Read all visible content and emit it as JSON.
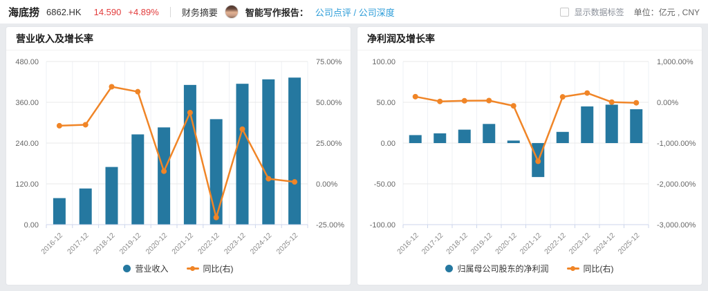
{
  "header": {
    "stock_name": "海底捞",
    "stock_code": "6862.HK",
    "price": "14.590",
    "change_percent": "+4.89%",
    "financial_summary": "财务摘要",
    "ai_report_label": "智能写作报告：",
    "report_link_comment": "公司点评",
    "report_link_separator": "/",
    "report_link_depth": "公司深度",
    "show_data_labels": "显示数据标签",
    "unit_label": "单位：亿元 , CNY"
  },
  "colors": {
    "bar_blue": "#2578a0",
    "line_orange": "#f08527",
    "price_red": "#e23c3c",
    "link_blue": "#2b9cd8",
    "page_bg": "#e9ebee"
  },
  "chart_data": [
    {
      "type": "bar",
      "title": "营业收入及增长率",
      "categories": [
        "2016-12",
        "2017-12",
        "2018-12",
        "2019-12",
        "2020-12",
        "2021-12",
        "2022-12",
        "2023-12",
        "2024-12",
        "2025-12"
      ],
      "series": [
        {
          "name": "营业收入",
          "type": "bar",
          "axis": "left",
          "color": "#2578a0",
          "values": [
            78.08,
            106.37,
            169.69,
            265.56,
            286.14,
            411.12,
            310.39,
            414.53,
            427.55,
            432.7
          ]
        },
        {
          "name": "同比(右)",
          "type": "line",
          "axis": "right",
          "color": "#f08527",
          "values": [
            35.63,
            36.24,
            59.53,
            56.49,
            7.75,
            43.68,
            -20.61,
            33.55,
            3.14,
            1.21
          ]
        }
      ],
      "left_axis": {
        "min": 0,
        "max": 480,
        "ticks": [
          {
            "value": 480,
            "label": "480.00"
          },
          {
            "value": 360,
            "label": "360.00"
          },
          {
            "value": 240,
            "label": "240.00"
          },
          {
            "value": 120,
            "label": "120.00"
          },
          {
            "value": 0,
            "label": "0.00"
          }
        ]
      },
      "right_axis": {
        "min": -25,
        "max": 75,
        "ticks": [
          {
            "value": 75,
            "label": "75.00%"
          },
          {
            "value": 50,
            "label": "50.00%"
          },
          {
            "value": 25,
            "label": "25.00%"
          },
          {
            "value": 0,
            "label": "0.00%"
          },
          {
            "value": -25,
            "label": "-25.00%"
          }
        ]
      },
      "grid": true,
      "legend_position": "bottom"
    },
    {
      "type": "bar",
      "title": "净利润及增长率",
      "categories": [
        "2016-12",
        "2017-12",
        "2018-12",
        "2019-12",
        "2020-12",
        "2021-12",
        "2022-12",
        "2023-12",
        "2024-12",
        "2025-12"
      ],
      "series": [
        {
          "name": "归属母公司股东的净利润",
          "type": "bar",
          "axis": "left",
          "color": "#2578a0",
          "values": [
            9.78,
            11.94,
            16.46,
            23.45,
            3.09,
            -41.63,
            13.73,
            44.95,
            47.08,
            41.5
          ]
        },
        {
          "name": "同比(右)",
          "type": "line",
          "axis": "right",
          "color": "#f08527",
          "values": [
            138.46,
            22.09,
            37.86,
            42.47,
            -86.82,
            -1446.93,
            132.98,
            227.38,
            4.74,
            -11.85
          ]
        }
      ],
      "left_axis": {
        "min": -100,
        "max": 100,
        "ticks": [
          {
            "value": 100,
            "label": "100.00"
          },
          {
            "value": 50,
            "label": "50.00"
          },
          {
            "value": 0,
            "label": "0.00"
          },
          {
            "value": -50,
            "label": "-50.00"
          },
          {
            "value": -100,
            "label": "-100.00"
          }
        ]
      },
      "right_axis": {
        "min": -3000,
        "max": 1000,
        "ticks": [
          {
            "value": 1000,
            "label": "1,000.00%"
          },
          {
            "value": 0,
            "label": "0.00%"
          },
          {
            "value": -1000,
            "label": "-1,000.00%"
          },
          {
            "value": -2000,
            "label": "-2,000.00%"
          },
          {
            "value": -3000,
            "label": "-3,000.00%"
          }
        ]
      },
      "grid": true,
      "legend_position": "bottom"
    }
  ]
}
